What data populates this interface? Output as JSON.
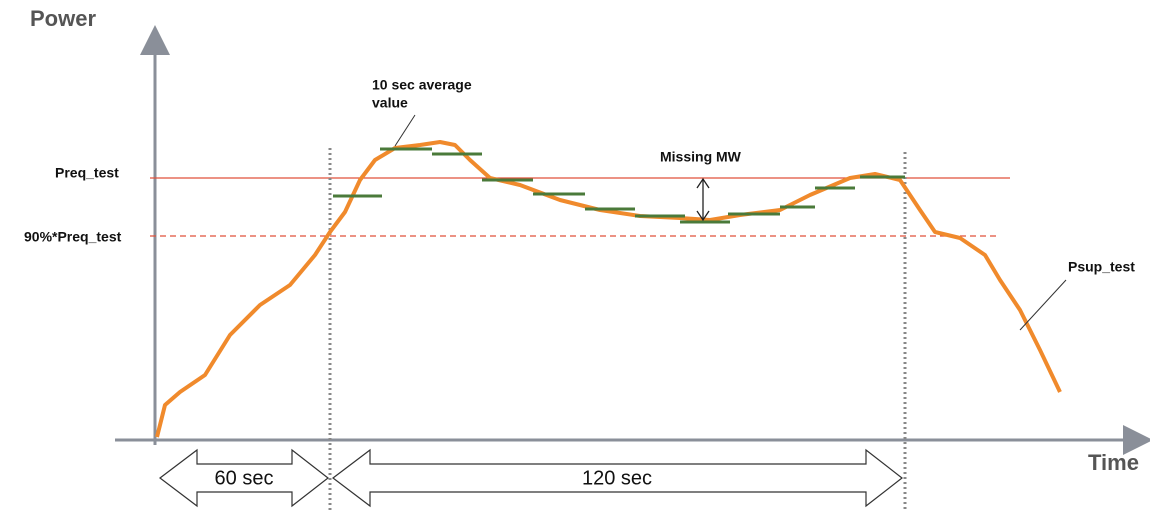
{
  "axes": {
    "y_label": "Power",
    "x_label": "Time"
  },
  "levels": {
    "required": "Preq_test",
    "ninety_percent": "90%*Preq_test"
  },
  "annotations": {
    "average": [
      "10 sec average",
      "value"
    ],
    "missing": "Missing MW",
    "curve": "Psup_test"
  },
  "durations": {
    "first": "60 sec",
    "second": "120 sec"
  }
}
